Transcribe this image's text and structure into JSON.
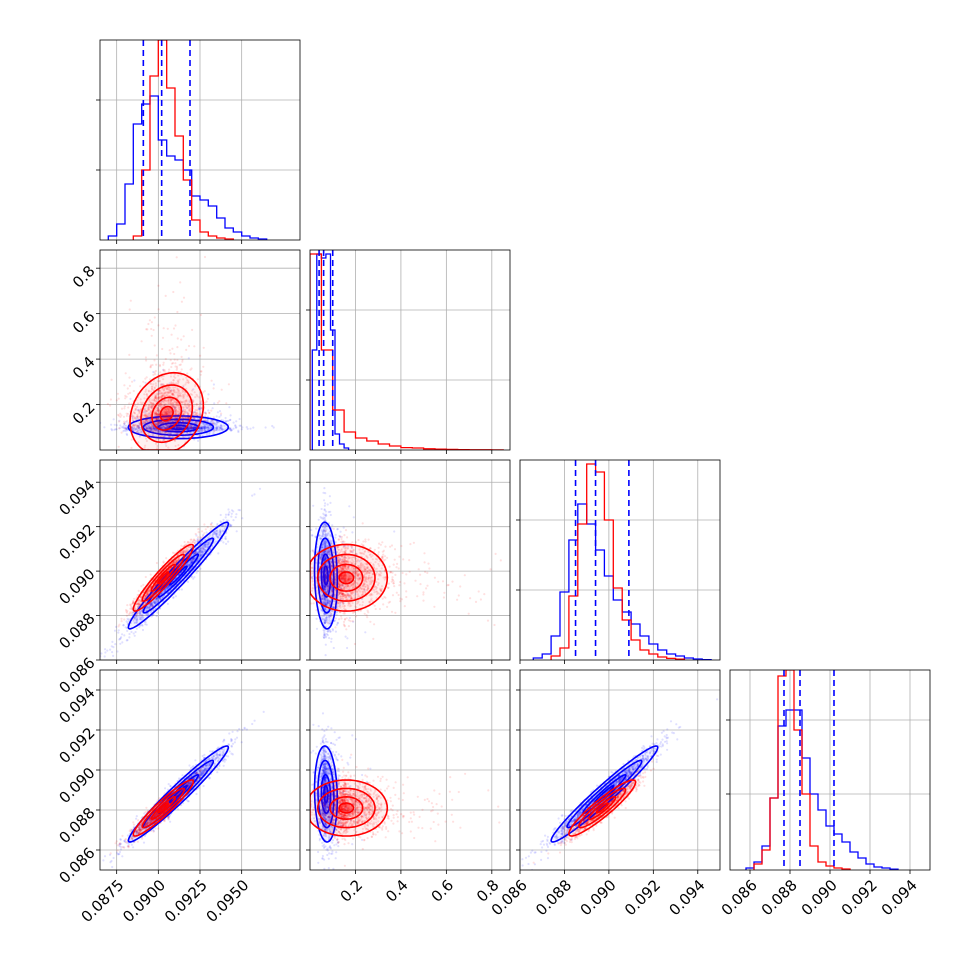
{
  "colors": {
    "blue": "#0000ff",
    "red": "#ff0000"
  },
  "chart_data": {
    "type": "corner",
    "grid": true,
    "series": [
      {
        "name": "",
        "color": "#0000ff"
      },
      {
        "name": "",
        "color": "#ff0000"
      }
    ],
    "axes": [
      {
        "index": 0,
        "lim": [
          0.0865,
          0.0985
        ],
        "tick_values": [
          0.0875,
          0.09,
          0.0925,
          0.095
        ],
        "tick_labels": [
          "0.0875",
          "0.0900",
          "0.0925",
          "0.0950"
        ]
      },
      {
        "index": 1,
        "lim": [
          0.0,
          0.88
        ],
        "tick_values": [
          0.2,
          0.4,
          0.6,
          0.8
        ],
        "tick_labels": [
          "0.2",
          "0.4",
          "0.6",
          "0.8"
        ]
      },
      {
        "index": 2,
        "lim": [
          0.086,
          0.095
        ],
        "tick_values": [
          0.086,
          0.088,
          0.09,
          0.092,
          0.094
        ],
        "tick_labels": [
          "0.086",
          "0.088",
          "0.090",
          "0.092",
          "0.094"
        ]
      },
      {
        "index": 3,
        "lim": [
          0.085,
          0.095
        ],
        "tick_values": [
          0.086,
          0.088,
          0.09,
          0.092,
          0.094
        ],
        "tick_labels": [
          "0.086",
          "0.088",
          "0.090",
          "0.092",
          "0.094"
        ]
      }
    ],
    "histograms": [
      {
        "index": 0,
        "ylim": [
          0,
          1
        ],
        "blue_edges": [
          0.087,
          0.0875,
          0.088,
          0.0885,
          0.089,
          0.0895,
          0.09,
          0.0905,
          0.091,
          0.0915,
          0.092,
          0.0925,
          0.093,
          0.0935,
          0.094,
          0.0945,
          0.095,
          0.0955,
          0.096,
          0.0965
        ],
        "blue_values": [
          0.02,
          0.08,
          0.28,
          0.58,
          0.68,
          0.72,
          0.5,
          0.42,
          0.4,
          0.35,
          0.22,
          0.2,
          0.17,
          0.11,
          0.06,
          0.04,
          0.02,
          0.01,
          0.005
        ],
        "red_edges": [
          0.0885,
          0.089,
          0.0895,
          0.09,
          0.0905,
          0.091,
          0.0915,
          0.092,
          0.0925,
          0.093,
          0.0935,
          0.094,
          0.0945
        ],
        "red_values": [
          0.02,
          0.35,
          0.82,
          1.0,
          0.76,
          0.52,
          0.3,
          0.1,
          0.04,
          0.02,
          0.01,
          0.005
        ],
        "quantiles": [
          0.0891,
          0.0902,
          0.0919
        ]
      },
      {
        "index": 1,
        "ylim": [
          0,
          1
        ],
        "blue_edges": [
          0.01,
          0.03,
          0.05,
          0.07,
          0.09,
          0.11,
          0.13,
          0.15,
          0.17
        ],
        "blue_values": [
          0.5,
          0.98,
          0.96,
          0.98,
          0.6,
          0.08,
          0.03,
          0.01
        ],
        "red_edges": [
          0.0,
          0.05,
          0.1,
          0.15,
          0.2,
          0.25,
          0.3,
          0.35,
          0.4,
          0.45,
          0.5,
          0.55,
          0.6,
          0.65,
          0.7,
          0.75,
          0.8,
          0.85
        ],
        "red_values": [
          0.98,
          0.5,
          0.2,
          0.09,
          0.06,
          0.045,
          0.03,
          0.02,
          0.012,
          0.01,
          0.006,
          0.004,
          0.003,
          0.002,
          0.001,
          0.001,
          0.0005
        ],
        "quantiles": [
          0.04,
          0.06,
          0.1
        ]
      },
      {
        "index": 2,
        "ylim": [
          0,
          1
        ],
        "blue_edges": [
          0.0866,
          0.087,
          0.0874,
          0.0878,
          0.0882,
          0.0886,
          0.089,
          0.0894,
          0.0898,
          0.0902,
          0.0906,
          0.091,
          0.0914,
          0.0918,
          0.0922,
          0.0926,
          0.093,
          0.0934,
          0.0938,
          0.0942,
          0.0946
        ],
        "blue_values": [
          0.01,
          0.03,
          0.12,
          0.34,
          0.6,
          0.78,
          0.68,
          0.55,
          0.42,
          0.3,
          0.24,
          0.18,
          0.12,
          0.08,
          0.05,
          0.03,
          0.02,
          0.01,
          0.005,
          0.002
        ],
        "red_edges": [
          0.0874,
          0.0878,
          0.0882,
          0.0886,
          0.089,
          0.0894,
          0.0898,
          0.0902,
          0.0906,
          0.091,
          0.0914,
          0.0918,
          0.0922,
          0.0926,
          0.093,
          0.0934
        ],
        "red_values": [
          0.02,
          0.06,
          0.32,
          0.68,
          0.98,
          0.94,
          0.7,
          0.36,
          0.2,
          0.1,
          0.05,
          0.03,
          0.015,
          0.008,
          0.004
        ],
        "quantiles": [
          0.0885,
          0.0894,
          0.0909
        ]
      },
      {
        "index": 3,
        "ylim": [
          0,
          1
        ],
        "blue_edges": [
          0.0858,
          0.0862,
          0.0866,
          0.087,
          0.0874,
          0.0878,
          0.0882,
          0.0886,
          0.089,
          0.0894,
          0.0898,
          0.0902,
          0.0906,
          0.091,
          0.0914,
          0.0918,
          0.0922,
          0.0926,
          0.093,
          0.0934
        ],
        "blue_values": [
          0.01,
          0.04,
          0.12,
          0.36,
          0.72,
          0.8,
          0.8,
          0.56,
          0.38,
          0.3,
          0.22,
          0.18,
          0.14,
          0.09,
          0.06,
          0.03,
          0.015,
          0.01,
          0.004
        ],
        "red_edges": [
          0.0862,
          0.0866,
          0.087,
          0.0874,
          0.0878,
          0.0882,
          0.0886,
          0.089,
          0.0894,
          0.0898,
          0.0902,
          0.0906,
          0.091
        ],
        "red_values": [
          0.03,
          0.1,
          0.36,
          0.97,
          1.0,
          0.7,
          0.38,
          0.12,
          0.04,
          0.02,
          0.01,
          0.005
        ],
        "quantiles": [
          0.0877,
          0.0885,
          0.0902
        ]
      }
    ],
    "scatter_panels": [
      {
        "x_index": 0,
        "y_index": 1,
        "blue": {
          "mx": 0.0912,
          "sx": 0.0015,
          "my": 0.1,
          "sy": 0.025,
          "rho": 0.0
        },
        "red": {
          "mx": 0.0905,
          "sx": 0.0011,
          "my": 0.16,
          "sy": 0.09,
          "rho": 0.2
        }
      },
      {
        "x_index": 0,
        "y_index": 2,
        "blue": {
          "mx": 0.0912,
          "sx": 0.0015,
          "my": 0.0898,
          "sy": 0.0012,
          "rho": 0.97
        },
        "red": {
          "mx": 0.0903,
          "sx": 0.0009,
          "my": 0.0897,
          "sy": 0.00075,
          "rho": 0.94
        }
      },
      {
        "x_index": 1,
        "y_index": 2,
        "blue": {
          "mx": 0.07,
          "sx": 0.025,
          "my": 0.0898,
          "sy": 0.0012,
          "rho": -0.1
        },
        "red": {
          "mx": 0.16,
          "sx": 0.09,
          "my": 0.0897,
          "sy": 0.00075,
          "rho": 0.0
        }
      },
      {
        "x_index": 0,
        "y_index": 3,
        "blue": {
          "mx": 0.0912,
          "sx": 0.0015,
          "my": 0.0888,
          "sy": 0.0012,
          "rho": 0.97
        },
        "red": {
          "mx": 0.0903,
          "sx": 0.0009,
          "my": 0.0881,
          "sy": 0.0007,
          "rho": 0.94
        }
      },
      {
        "x_index": 1,
        "y_index": 3,
        "blue": {
          "mx": 0.07,
          "sx": 0.025,
          "my": 0.0888,
          "sy": 0.0012,
          "rho": -0.1
        },
        "red": {
          "mx": 0.16,
          "sx": 0.09,
          "my": 0.0881,
          "sy": 0.0007,
          "rho": 0.0
        }
      },
      {
        "x_index": 2,
        "y_index": 3,
        "blue": {
          "mx": 0.0898,
          "sx": 0.0012,
          "my": 0.0888,
          "sy": 0.0012,
          "rho": 0.97
        },
        "red": {
          "mx": 0.0897,
          "sx": 0.00075,
          "my": 0.0881,
          "sy": 0.0007,
          "rho": 0.92
        }
      }
    ]
  }
}
